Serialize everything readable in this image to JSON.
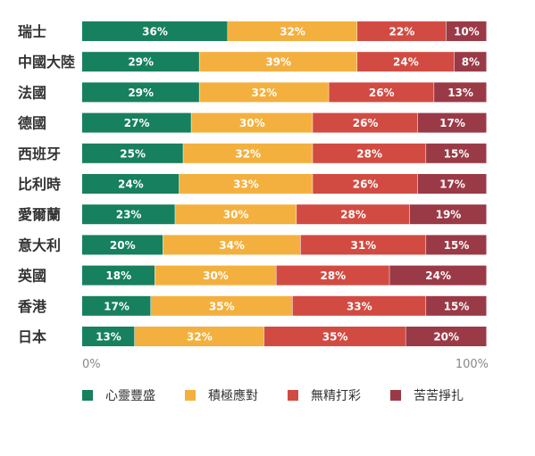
{
  "chart_data": {
    "type": "bar",
    "orientation": "horizontal",
    "stacked": true,
    "categories": [
      "瑞士",
      "中國大陸",
      "法國",
      "德國",
      "西班牙",
      "比利時",
      "愛爾蘭",
      "意大利",
      "英國",
      "香港",
      "日本"
    ],
    "series": [
      {
        "name": "心靈豐盛",
        "color": "#17805e",
        "values": [
          36,
          29,
          29,
          27,
          25,
          24,
          23,
          20,
          18,
          17,
          13
        ]
      },
      {
        "name": "積極應對",
        "color": "#f4b03e",
        "values": [
          32,
          39,
          32,
          30,
          32,
          33,
          30,
          34,
          30,
          35,
          32
        ]
      },
      {
        "name": "無精打彩",
        "color": "#d24b42",
        "values": [
          22,
          24,
          26,
          26,
          28,
          26,
          28,
          31,
          28,
          33,
          35
        ]
      },
      {
        "name": "苦苦掙扎",
        "color": "#9b3a47",
        "values": [
          10,
          8,
          13,
          17,
          15,
          17,
          19,
          15,
          24,
          15,
          20
        ]
      }
    ],
    "value_suffix": "%",
    "xlim": [
      0,
      100
    ],
    "x_tick_labels": [
      "0%",
      "100%"
    ],
    "grid": false,
    "legend_position": "bottom"
  }
}
